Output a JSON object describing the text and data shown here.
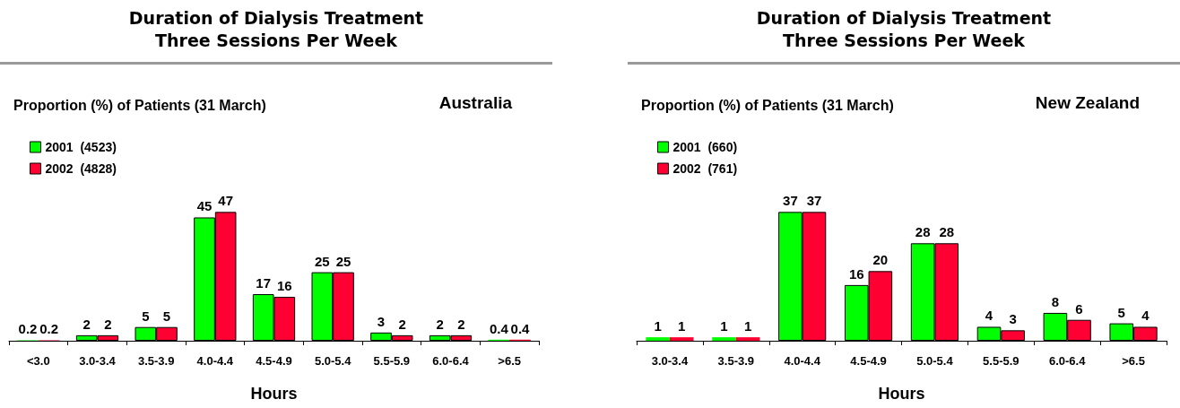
{
  "chart_data": [
    {
      "type": "bar",
      "title": "Duration of Dialysis Treatment\nThree Sessions Per Week",
      "subtitle": "Proportion (%) of Patients (31 March)",
      "annotations": [
        "Australia"
      ],
      "xlabel": "Hours",
      "categories": [
        "<3.0",
        "3.0-3.4",
        "3.5-3.9",
        "4.0-4.4",
        "4.5-4.9",
        "5.0-5.4",
        "5.5-5.9",
        "6.0-6.4",
        ">6.5"
      ],
      "series": [
        {
          "name": "2001  (4523)",
          "color": "#00ff00",
          "values": [
            0.2,
            2,
            5,
            45,
            17,
            25,
            3,
            2,
            0.4
          ]
        },
        {
          "name": "2002  (4828)",
          "color": "#ff0033",
          "values": [
            0.2,
            2,
            5,
            47,
            16,
            25,
            2,
            2,
            0.4
          ]
        }
      ],
      "data_labels": true,
      "legend": "top left",
      "grid": false
    },
    {
      "type": "bar",
      "title": "Duration of Dialysis Treatment\nThree Sessions Per Week",
      "subtitle": "Proportion (%) of Patients (31 March)",
      "annotations": [
        "New Zealand"
      ],
      "xlabel": "Hours",
      "categories": [
        "3.0-3.4",
        "3.5-3.9",
        "4.0-4.4",
        "4.5-4.9",
        "5.0-5.4",
        "5.5-5.9",
        "6.0-6.4",
        ">6.5"
      ],
      "series": [
        {
          "name": "2001  (660)",
          "color": "#00ff00",
          "values": [
            1,
            1,
            37,
            16,
            28,
            4,
            8,
            5
          ]
        },
        {
          "name": "2002  (761)",
          "color": "#ff0033",
          "values": [
            1,
            1,
            37,
            20,
            28,
            3,
            6,
            4
          ]
        }
      ],
      "data_labels": true,
      "legend": "top left",
      "grid": false
    }
  ]
}
